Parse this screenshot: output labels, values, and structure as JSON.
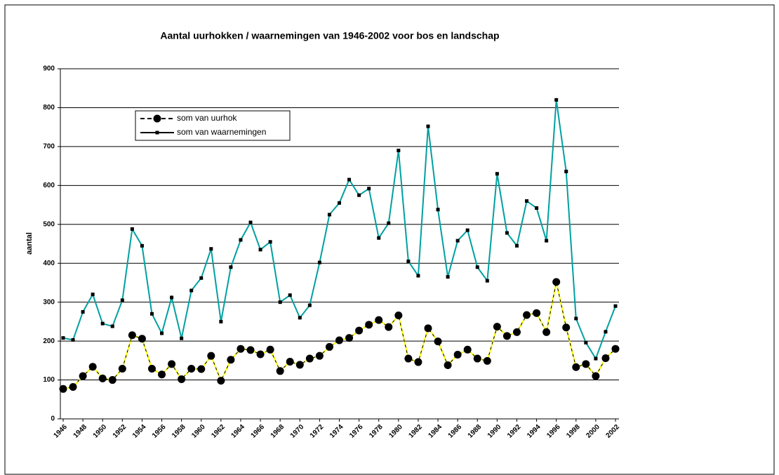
{
  "chart_data": {
    "type": "line",
    "title": "Aantal uurhokken / waarnemingen van 1946-2002 voor bos en landschap",
    "y_label": "aantal",
    "x": [
      1946,
      1947,
      1948,
      1949,
      1950,
      1951,
      1952,
      1953,
      1954,
      1955,
      1956,
      1957,
      1958,
      1959,
      1960,
      1961,
      1962,
      1963,
      1964,
      1965,
      1966,
      1967,
      1968,
      1969,
      1970,
      1971,
      1972,
      1973,
      1974,
      1975,
      1976,
      1977,
      1978,
      1979,
      1980,
      1981,
      1982,
      1983,
      1984,
      1985,
      1986,
      1987,
      1988,
      1989,
      1990,
      1991,
      1992,
      1993,
      1994,
      1995,
      1996,
      1997,
      1998,
      1999,
      2000,
      2001,
      2002
    ],
    "series": [
      {
        "name": "som van uurhok",
        "color": "#ffff00",
        "values": [
          77,
          82,
          110,
          134,
          104,
          100,
          129,
          215,
          206,
          129,
          114,
          141,
          102,
          129,
          128,
          162,
          98,
          152,
          180,
          177,
          166,
          178,
          123,
          147,
          139,
          155,
          162,
          185,
          202,
          208,
          227,
          242,
          254,
          236,
          266,
          155,
          146,
          233,
          199,
          138,
          165,
          178,
          155,
          149,
          237,
          213,
          223,
          267,
          272,
          223,
          352,
          235,
          133,
          141,
          110,
          156,
          180
        ]
      },
      {
        "name": "som van waarnemingen",
        "color": "#00a0a0",
        "values": [
          208,
          203,
          275,
          320,
          245,
          238,
          305,
          488,
          445,
          270,
          220,
          312,
          207,
          330,
          362,
          437,
          250,
          390,
          460,
          505,
          435,
          455,
          300,
          318,
          260,
          292,
          402,
          525,
          555,
          615,
          575,
          592,
          465,
          503,
          690,
          405,
          368,
          752,
          538,
          365,
          458,
          485,
          390,
          355,
          630,
          478,
          445,
          560,
          542,
          458,
          820,
          636,
          258,
          196,
          155,
          224,
          290
        ]
      }
    ],
    "xlim": [
      1946,
      2002
    ],
    "xticks": [
      1946,
      1948,
      1950,
      1952,
      1954,
      1956,
      1958,
      1960,
      1962,
      1964,
      1966,
      1968,
      1970,
      1972,
      1974,
      1976,
      1978,
      1980,
      1982,
      1984,
      1986,
      1988,
      1990,
      1992,
      1994,
      1996,
      1998,
      2000,
      2002
    ],
    "ylim": [
      0,
      900
    ],
    "yticks": [
      0,
      100,
      200,
      300,
      400,
      500,
      600,
      700,
      800,
      900
    ],
    "grid": true
  }
}
